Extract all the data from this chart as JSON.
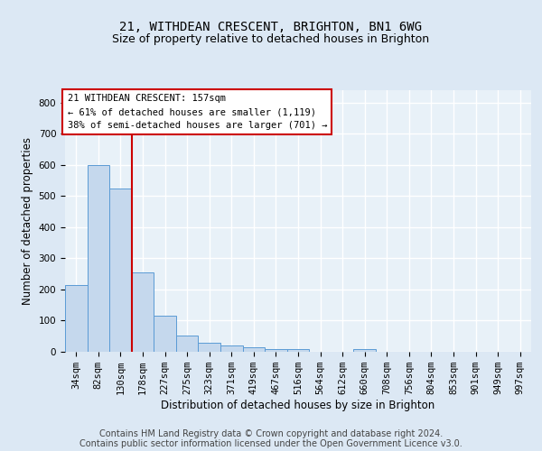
{
  "title_line1": "21, WITHDEAN CRESCENT, BRIGHTON, BN1 6WG",
  "title_line2": "Size of property relative to detached houses in Brighton",
  "xlabel": "Distribution of detached houses by size in Brighton",
  "ylabel": "Number of detached properties",
  "bar_labels": [
    "34sqm",
    "82sqm",
    "130sqm",
    "178sqm",
    "227sqm",
    "275sqm",
    "323sqm",
    "371sqm",
    "419sqm",
    "467sqm",
    "516sqm",
    "564sqm",
    "612sqm",
    "660sqm",
    "708sqm",
    "756sqm",
    "804sqm",
    "853sqm",
    "901sqm",
    "949sqm",
    "997sqm"
  ],
  "bar_values": [
    215,
    600,
    525,
    255,
    115,
    52,
    30,
    20,
    15,
    10,
    10,
    0,
    0,
    10,
    0,
    0,
    0,
    0,
    0,
    0,
    0
  ],
  "bar_color": "#c5d8ed",
  "bar_edge_color": "#5b9bd5",
  "vline_x": 2.5,
  "vline_color": "#cc0000",
  "annotation_text": "21 WITHDEAN CRESCENT: 157sqm\n← 61% of detached houses are smaller (1,119)\n38% of semi-detached houses are larger (701) →",
  "annotation_box_color": "#ffffff",
  "annotation_box_edge": "#cc0000",
  "ylim": [
    0,
    840
  ],
  "yticks": [
    0,
    100,
    200,
    300,
    400,
    500,
    600,
    700,
    800
  ],
  "footer_line1": "Contains HM Land Registry data © Crown copyright and database right 2024.",
  "footer_line2": "Contains public sector information licensed under the Open Government Licence v3.0.",
  "bg_color": "#dce8f4",
  "plot_bg_color": "#e8f1f8",
  "grid_color": "#ffffff",
  "title_fontsize": 10,
  "subtitle_fontsize": 9,
  "axis_label_fontsize": 8.5,
  "tick_fontsize": 7.5,
  "annotation_fontsize": 7.5,
  "footer_fontsize": 7
}
